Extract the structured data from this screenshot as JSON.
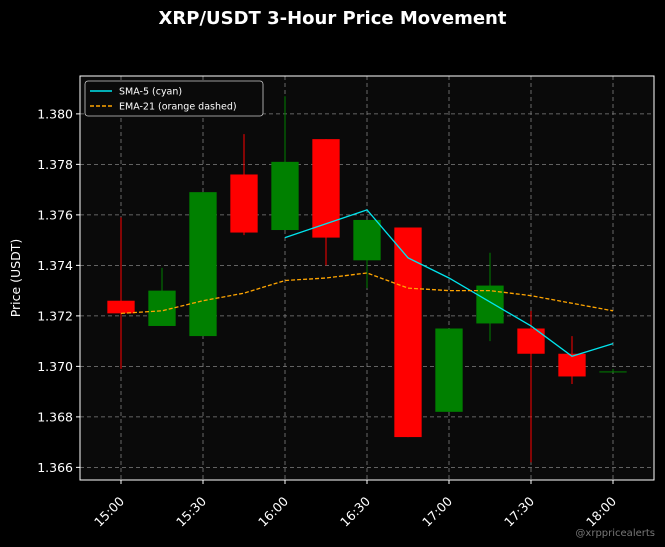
{
  "chart_data": {
    "type": "candlestick",
    "title": "XRP/USDT 3-Hour Price Movement",
    "xlabel": "",
    "ylabel": "Price (USDT)",
    "ylim": [
      1.3655,
      1.3815
    ],
    "y_ticks": [
      "1.366",
      "1.368",
      "1.370",
      "1.372",
      "1.374",
      "1.376",
      "1.378",
      "1.380"
    ],
    "y_tick_values": [
      1.366,
      1.368,
      1.37,
      1.372,
      1.374,
      1.376,
      1.378,
      1.38
    ],
    "x_ticks": [
      "15:00",
      "15:30",
      "16:00",
      "16:30",
      "17:00",
      "17:30",
      "18:00"
    ],
    "x_tick_minutes": [
      0,
      30,
      60,
      90,
      120,
      150,
      180
    ],
    "xlim_minutes": [
      -15,
      195
    ],
    "grid": true,
    "legend_position": "top-left",
    "candle_width_minutes": 10,
    "candles": [
      {
        "time": "15:00",
        "open": 1.3726,
        "high": 1.3759,
        "low": 1.3699,
        "close": 1.3721
      },
      {
        "time": "15:15",
        "open": 1.3716,
        "high": 1.3739,
        "low": 1.3716,
        "close": 1.373
      },
      {
        "time": "15:30",
        "open": 1.3712,
        "high": 1.3769,
        "low": 1.3712,
        "close": 1.3769
      },
      {
        "time": "15:45",
        "open": 1.3776,
        "high": 1.3792,
        "low": 1.3752,
        "close": 1.3753
      },
      {
        "time": "16:00",
        "open": 1.3754,
        "high": 1.3807,
        "low": 1.3754,
        "close": 1.3781
      },
      {
        "time": "16:15",
        "open": 1.379,
        "high": 1.379,
        "low": 1.374,
        "close": 1.3751
      },
      {
        "time": "16:30",
        "open": 1.3742,
        "high": 1.3758,
        "low": 1.3731,
        "close": 1.3758
      },
      {
        "time": "16:45",
        "open": 1.3755,
        "high": 1.3755,
        "low": 1.3672,
        "close": 1.3672
      },
      {
        "time": "17:00",
        "open": 1.3682,
        "high": 1.3715,
        "low": 1.3682,
        "close": 1.3715
      },
      {
        "time": "17:15",
        "open": 1.3717,
        "high": 1.3745,
        "low": 1.371,
        "close": 1.3732
      },
      {
        "time": "17:30",
        "open": 1.3715,
        "high": 1.3722,
        "low": 1.3662,
        "close": 1.3705
      },
      {
        "time": "17:45",
        "open": 1.3705,
        "high": 1.3712,
        "low": 1.3693,
        "close": 1.3696
      },
      {
        "time": "18:00",
        "open": 1.3698,
        "high": 1.3699,
        "low": 1.3698,
        "close": 1.3698
      }
    ],
    "series": [
      {
        "name": "SMA-5 (cyan)",
        "color": "#00e5ee",
        "style": "solid",
        "x_minutes": [
          60,
          90,
          105,
          120,
          150,
          165,
          180
        ],
        "values": [
          1.3751,
          1.3762,
          1.3743,
          1.3735,
          1.3716,
          1.3704,
          1.3709
        ]
      },
      {
        "name": "EMA-21 (orange dashed)",
        "color": "#ffa500",
        "style": "dashed",
        "x_minutes": [
          0,
          15,
          30,
          45,
          60,
          75,
          90,
          105,
          120,
          135,
          150,
          165,
          180
        ],
        "values": [
          1.3721,
          1.3722,
          1.3726,
          1.3729,
          1.3734,
          1.3735,
          1.3737,
          1.3731,
          1.373,
          1.373,
          1.3728,
          1.3725,
          1.3722
        ]
      }
    ],
    "colors": {
      "up": "#008000",
      "down": "#ff0000",
      "background": "#000000",
      "plot_background": "#0a0a0a",
      "grid": "#808080",
      "axis": "#ffffff"
    },
    "watermark": "@xrppricealerts"
  }
}
